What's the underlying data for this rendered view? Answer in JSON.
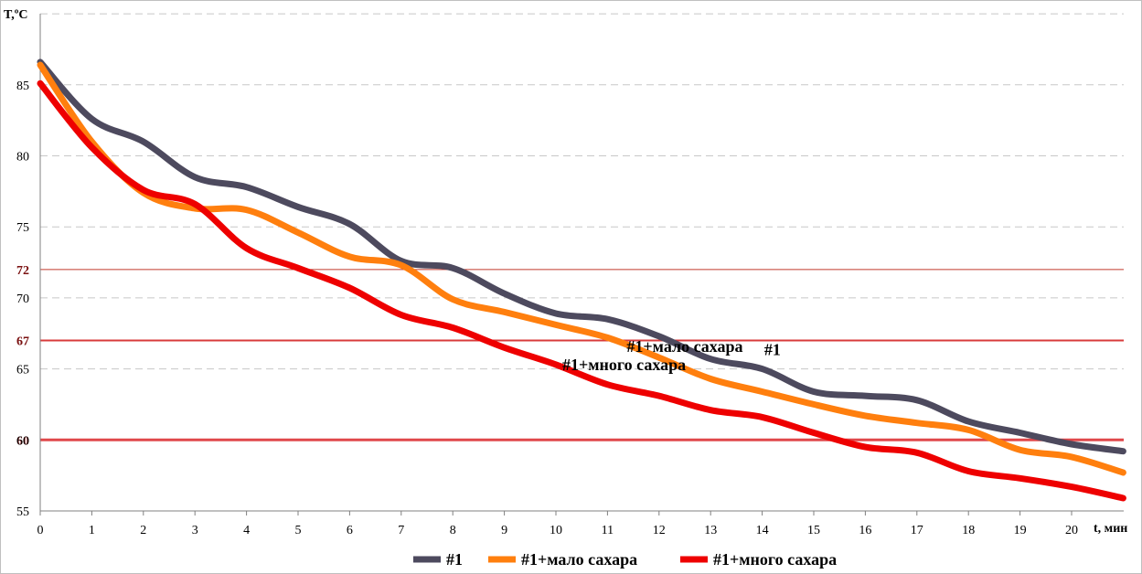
{
  "chart_data": {
    "type": "line",
    "title": "",
    "xlabel": "t, мин",
    "ylabel": "T,ºC",
    "xlim": [
      0,
      21
    ],
    "ylim": [
      55,
      90
    ],
    "x_ticks": [
      "0",
      "1",
      "2",
      "3",
      "4",
      "5",
      "6",
      "7",
      "8",
      "9",
      "10",
      "11",
      "12",
      "13",
      "14",
      "15",
      "16",
      "17",
      "18",
      "19",
      "20"
    ],
    "y_ticks": [
      "55",
      "60",
      "65",
      "70",
      "75",
      "80",
      "85"
    ],
    "grid": "horizontal-dashed",
    "legend": "bottom",
    "x": [
      0,
      1,
      2,
      3,
      4,
      5,
      6,
      7,
      8,
      9,
      10,
      11,
      12,
      13,
      14,
      15,
      16,
      17,
      18,
      19,
      20,
      21
    ],
    "series": [
      {
        "name": "#1",
        "color": "#4d4a5e",
        "values": [
          86.6,
          82.6,
          81.0,
          78.5,
          77.8,
          76.4,
          75.2,
          72.6,
          72.1,
          70.3,
          68.9,
          68.5,
          67.3,
          65.7,
          65.0,
          63.4,
          63.1,
          62.8,
          61.3,
          60.5,
          59.7,
          59.2
        ]
      },
      {
        "name": "#1+мало сахара",
        "color": "#ff7f0e",
        "values": [
          86.4,
          81.0,
          77.4,
          76.3,
          76.2,
          74.6,
          72.9,
          72.3,
          69.9,
          69.0,
          68.1,
          67.2,
          65.8,
          64.3,
          63.4,
          62.5,
          61.7,
          61.2,
          60.7,
          59.3,
          58.8,
          57.7
        ]
      },
      {
        "name": "#1+много сахара",
        "color": "#ee0000",
        "values": [
          85.1,
          80.6,
          77.6,
          76.6,
          73.5,
          72.1,
          70.7,
          68.8,
          67.9,
          66.5,
          65.3,
          63.9,
          63.1,
          62.1,
          61.6,
          60.5,
          59.5,
          59.1,
          57.8,
          57.3,
          56.7,
          55.9
        ]
      }
    ],
    "reference_lines": [
      {
        "y": 72,
        "label": "72",
        "color": "#c0392b"
      },
      {
        "y": 67,
        "label": "67",
        "color": "#d83b3b"
      },
      {
        "y": 60,
        "label": "60",
        "color": "#e0484b"
      }
    ],
    "annotations": [
      {
        "text": "#1",
        "series": "#1",
        "x": 14.2
      },
      {
        "text": "#1+мало сахара",
        "series": "#1+мало сахара",
        "x": 12.5
      },
      {
        "text": "#1+много сахара",
        "series": "#1+много сахара",
        "x": 11.5
      }
    ]
  }
}
